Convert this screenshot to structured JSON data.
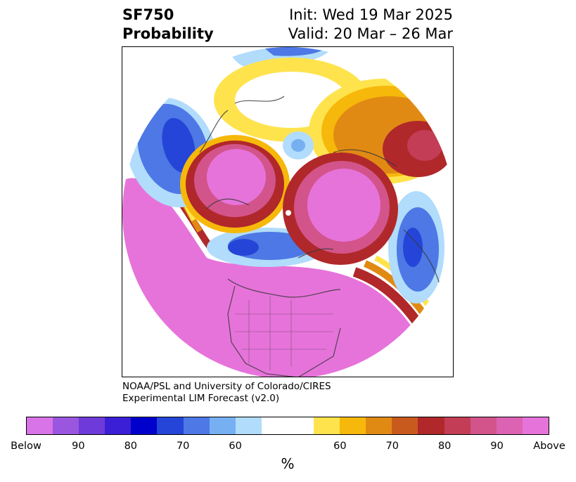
{
  "title": {
    "variable": "SF750",
    "subtitle": "Probability",
    "init": "Init: Wed 19 Mar 2025",
    "valid": "Valid: 20 Mar – 26 Mar"
  },
  "credit": {
    "line1": "NOAA/PSL and University of Colorado/CIRES",
    "line2": "Experimental LIM Forecast (v2.0)"
  },
  "colorbar": {
    "colors": [
      "#d873e8",
      "#9b56e0",
      "#6e3ad9",
      "#3a1fd6",
      "#0000cc",
      "#2545d8",
      "#4d78e5",
      "#76b0f2",
      "#b1dcfb",
      "#ffffff",
      "#ffffff",
      "#ffe34d",
      "#f6b80a",
      "#e08a14",
      "#c85a1e",
      "#b0282a",
      "#c23d55",
      "#d2548b",
      "#dc62b3",
      "#e673da"
    ],
    "ticks": [
      "Below",
      "90",
      "80",
      "70",
      "60",
      "60",
      "70",
      "80",
      "90",
      "Above"
    ],
    "unit": "%"
  },
  "map": {
    "projection": "north-polar-stereographic",
    "colors": {
      "pink": "#e673da",
      "magenta": "#d2548b",
      "darkred": "#b0282a",
      "orange": "#e08a14",
      "gold": "#f6b80a",
      "yellow": "#ffe34d",
      "lightblue": "#b1dcfb",
      "medblue": "#4d78e5",
      "blue": "#2545d8",
      "coast": "#3a3a3a"
    }
  }
}
